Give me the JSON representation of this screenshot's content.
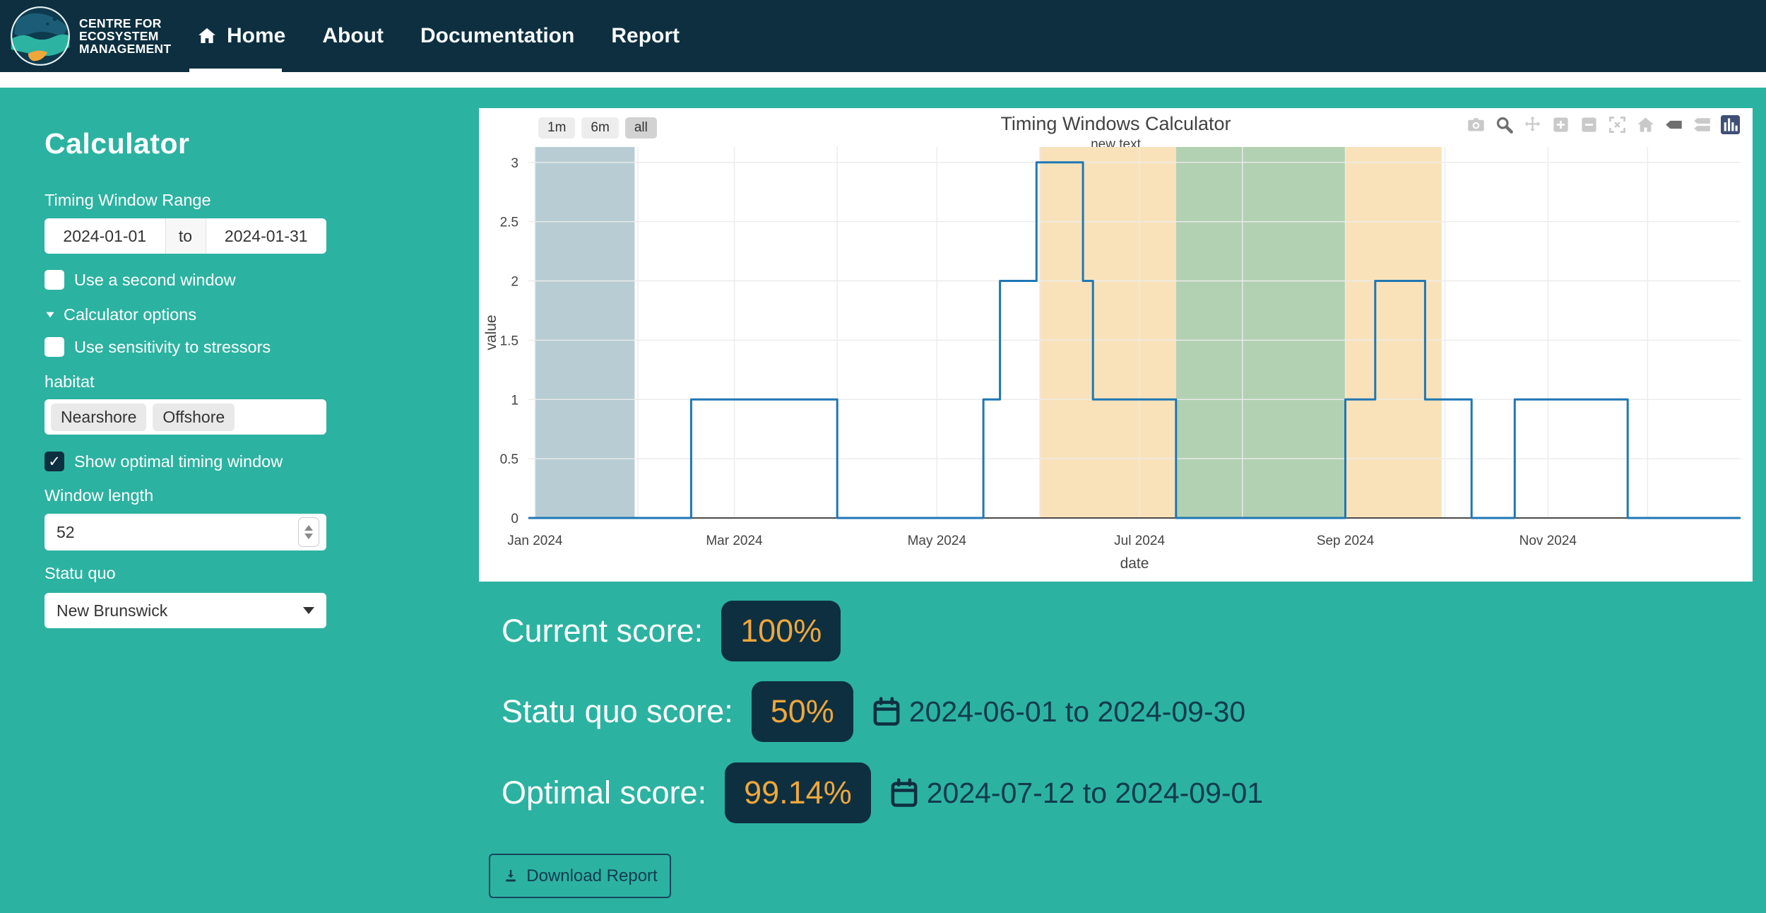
{
  "nav": {
    "logo_lines": [
      "CENTRE FOR",
      "ECOSYSTEM",
      "MANAGEMENT"
    ],
    "items": [
      {
        "label": "Home",
        "active": true
      },
      {
        "label": "About",
        "active": false
      },
      {
        "label": "Documentation",
        "active": false
      },
      {
        "label": "Report",
        "active": false
      }
    ]
  },
  "sidebar": {
    "heading": "Calculator",
    "timing_label": "Timing Window Range",
    "date_start": "2024-01-01",
    "date_sep": "to",
    "date_end": "2024-01-31",
    "second_window_label": "Use a second window",
    "options_toggle_label": "Calculator options",
    "sensitivity_label": "Use sensitivity to stressors",
    "habitat_label": "habitat",
    "habitat_chips": [
      "Nearshore",
      "Offshore"
    ],
    "optimal_label": "Show optimal timing window",
    "window_length_label": "Window length",
    "window_length_value": "52",
    "statuquo_label": "Statu quo",
    "statuquo_value": "New Brunswick"
  },
  "chart": {
    "title": "Timing Windows Calculator",
    "subtitle": "new text",
    "range_buttons": [
      "1m",
      "6m",
      "all"
    ],
    "active_range": "all",
    "modebar_icons": [
      "camera",
      "zoom",
      "pan",
      "zoom-in",
      "zoom-out",
      "autoscale",
      "home",
      "hover-closest",
      "hover-compare",
      "plotly-logo"
    ]
  },
  "chart_data": {
    "type": "line",
    "title": "Timing Windows Calculator",
    "subtitle": "new text",
    "xlabel": "date",
    "ylabel": "value",
    "x_domain": [
      "2023-12-30",
      "2024-12-29"
    ],
    "y_range": [
      0,
      3.13
    ],
    "y_ticks": [
      0,
      0.5,
      1,
      1.5,
      2,
      2.5,
      3
    ],
    "x_month_gridlines": [
      "2024-01-01",
      "2024-02-01",
      "2024-03-01",
      "2024-04-01",
      "2024-05-01",
      "2024-06-01",
      "2024-07-01",
      "2024-08-01",
      "2024-09-01",
      "2024-10-01",
      "2024-11-01",
      "2024-12-01"
    ],
    "x_ticks": [
      {
        "date": "2024-01-01",
        "label": "Jan 2024"
      },
      {
        "date": "2024-03-01",
        "label": "Mar 2024"
      },
      {
        "date": "2024-05-01",
        "label": "May 2024"
      },
      {
        "date": "2024-07-01",
        "label": "Jul 2024"
      },
      {
        "date": "2024-09-01",
        "label": "Sep 2024"
      },
      {
        "date": "2024-11-01",
        "label": "Nov 2024"
      }
    ],
    "regions": [
      {
        "name": "timing-window",
        "start": "2024-01-01",
        "end": "2024-01-31",
        "color": "#b7cdd3"
      },
      {
        "name": "statu-quo-window-a",
        "start": "2024-06-01",
        "end": "2024-07-12",
        "color": "#f9e2ba"
      },
      {
        "name": "optimal-window",
        "start": "2024-07-12",
        "end": "2024-09-01",
        "color": "#b2d1b2"
      },
      {
        "name": "statu-quo-window-b",
        "start": "2024-09-01",
        "end": "2024-09-30",
        "color": "#f9e2ba"
      }
    ],
    "series": [
      {
        "name": "value",
        "color": "#1f77b4",
        "step_points": [
          [
            "2023-12-30",
            0
          ],
          [
            "2024-02-17",
            1
          ],
          [
            "2024-04-01",
            0
          ],
          [
            "2024-05-15",
            1
          ],
          [
            "2024-05-20",
            2
          ],
          [
            "2024-05-31",
            3
          ],
          [
            "2024-06-14",
            2
          ],
          [
            "2024-06-17",
            1
          ],
          [
            "2024-07-12",
            0
          ],
          [
            "2024-09-01",
            1
          ],
          [
            "2024-09-10",
            2
          ],
          [
            "2024-09-25",
            1
          ],
          [
            "2024-10-09",
            0
          ],
          [
            "2024-10-22",
            1
          ],
          [
            "2024-11-25",
            0
          ],
          [
            "2024-12-29",
            0
          ]
        ]
      }
    ],
    "zero_line_color": "#4a4a4a",
    "grid_color": "#ebebeb"
  },
  "scores": {
    "rows": [
      {
        "label": "Current score:",
        "value": "100%",
        "range": ""
      },
      {
        "label": "Statu quo score:",
        "value": "50%",
        "range": "2024-06-01 to 2024-09-30"
      },
      {
        "label": "Optimal score:",
        "value": "99.14%",
        "range": "2024-07-12 to 2024-09-01"
      }
    ]
  },
  "download_label": "Download Report",
  "colors": {
    "navbar": "#0d2f40",
    "page_teal": "#2cb2a1",
    "badge_bg": "#0e2f40",
    "badge_text": "#efa73c",
    "line_blue": "#1f77b4"
  }
}
